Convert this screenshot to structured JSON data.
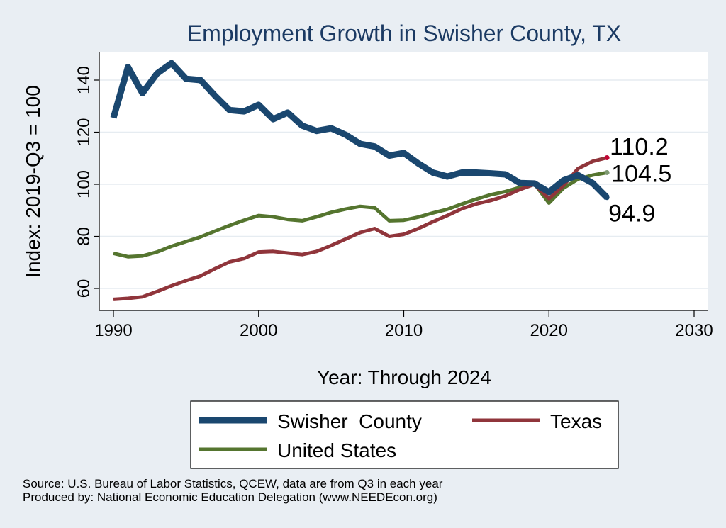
{
  "chart_data": {
    "type": "line",
    "title": "Employment Growth in Swisher County, TX",
    "xlabel": "Year: Through 2024",
    "ylabel": "Index: 2019-Q3 = 100",
    "xlim": [
      1990,
      2030
    ],
    "ylim": [
      52,
      152
    ],
    "xticks": [
      1990,
      2000,
      2010,
      2020,
      2030
    ],
    "yticks": [
      60,
      80,
      100,
      120,
      140
    ],
    "grid": true,
    "legend_position": "bottom",
    "x": [
      1990,
      1991,
      1992,
      1993,
      1994,
      1995,
      1996,
      1997,
      1998,
      1999,
      2000,
      2001,
      2002,
      2003,
      2004,
      2005,
      2006,
      2007,
      2008,
      2009,
      2010,
      2011,
      2012,
      2013,
      2014,
      2015,
      2016,
      2017,
      2018,
      2019,
      2020,
      2021,
      2022,
      2023,
      2024
    ],
    "series": [
      {
        "name": "Swisher  County",
        "color": "#1a476f",
        "width": 9,
        "values": [
          125.5,
          145,
          135,
          142.5,
          146.5,
          140.5,
          140,
          134,
          128.5,
          128,
          130.5,
          125,
          127.5,
          122.5,
          120.5,
          121.5,
          119,
          115.5,
          114.5,
          111,
          112,
          108,
          104.5,
          103,
          104.5,
          104.5,
          104.2,
          103.8,
          100.5,
          100.3,
          97,
          101.5,
          103.5,
          100.5,
          94.9
        ],
        "end_label": "94.9"
      },
      {
        "name": "Texas",
        "color": "#90353b",
        "width": 5,
        "values": [
          55.8,
          56.2,
          56.8,
          58.8,
          61,
          63,
          64.8,
          67.6,
          70.2,
          71.5,
          74,
          74.2,
          73.6,
          73,
          74.2,
          76.5,
          79,
          81.5,
          83,
          80,
          80.8,
          83,
          85.6,
          88,
          90.6,
          92.5,
          93.8,
          95.5,
          98,
          100,
          94.5,
          99.5,
          106,
          108.8,
          110.2
        ],
        "end_label": "110.2"
      },
      {
        "name": "United States",
        "color": "#55752f",
        "width": 5,
        "values": [
          73.5,
          72.2,
          72.5,
          74,
          76.2,
          78,
          79.8,
          82,
          84.2,
          86.2,
          88,
          87.5,
          86.5,
          86,
          87.5,
          89.2,
          90.5,
          91.5,
          91,
          86,
          86.2,
          87.4,
          89,
          90.4,
          92.4,
          94.3,
          96,
          97.2,
          98.8,
          100.2,
          92.8,
          98.5,
          102,
          103.5,
          104.5
        ],
        "end_label": "104.5"
      }
    ]
  },
  "source_text": "Source: U.S. Bureau of Labor Statistics, QCEW, data are from Q3 in each year",
  "produced_text": "Produced by: National Economic Education Delegation (www.NEEDEcon.org)",
  "colors": {
    "background": "#e9eef3",
    "plot_background": "#ffffff",
    "grid": "#e6ecf1",
    "title": "#1b3a63",
    "texas_marker": "#c10534",
    "us_marker": "#7f9a72"
  }
}
